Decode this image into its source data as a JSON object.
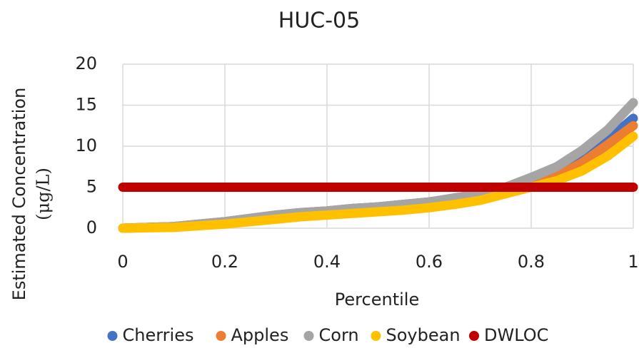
{
  "chart_data": {
    "type": "scatter",
    "title": "HUC-05",
    "xlabel": "Percentile",
    "ylabel": [
      "Estimated Concentration",
      "(μg/L)"
    ],
    "x": [
      0,
      0.05,
      0.1,
      0.15,
      0.2,
      0.25,
      0.3,
      0.35,
      0.4,
      0.45,
      0.5,
      0.55,
      0.6,
      0.65,
      0.7,
      0.75,
      0.8,
      0.85,
      0.9,
      0.95,
      1
    ],
    "series": [
      {
        "name": "Cherries",
        "color": "#4472c4",
        "values": [
          0,
          0.1,
          0.2,
          0.5,
          0.8,
          1.2,
          1.6,
          1.9,
          2.1,
          2.4,
          2.6,
          2.9,
          3.2,
          3.6,
          4.1,
          4.8,
          5.6,
          6.8,
          8.5,
          10.8,
          13.4
        ]
      },
      {
        "name": "Apples",
        "color": "#ed7d31",
        "values": [
          0,
          0.1,
          0.2,
          0.5,
          0.8,
          1.2,
          1.6,
          1.9,
          2.1,
          2.4,
          2.6,
          2.9,
          3.2,
          3.6,
          4.0,
          4.6,
          5.2,
          6.3,
          8.0,
          10.2,
          12.5
        ]
      },
      {
        "name": "Corn",
        "color": "#a5a5a5",
        "values": [
          0,
          0.1,
          0.2,
          0.5,
          0.8,
          1.2,
          1.6,
          1.9,
          2.1,
          2.4,
          2.6,
          2.9,
          3.2,
          3.7,
          4.2,
          5.0,
          6.2,
          7.5,
          9.5,
          12,
          15.3
        ]
      },
      {
        "name": "Soybean",
        "color": "#ffc000",
        "values": [
          0,
          0.05,
          0.1,
          0.3,
          0.5,
          0.8,
          1.1,
          1.4,
          1.6,
          1.8,
          2.0,
          2.2,
          2.5,
          2.9,
          3.4,
          4.2,
          5.0,
          5.8,
          7.0,
          8.8,
          11.2
        ]
      },
      {
        "name": "DWLOC",
        "color": "#c00000",
        "values": [
          5,
          5,
          5,
          5,
          5,
          5,
          5,
          5,
          5,
          5,
          5,
          5,
          5,
          5,
          5,
          5,
          5,
          5,
          5,
          5,
          5
        ]
      }
    ],
    "xlim": [
      0,
      1
    ],
    "xticks": [
      0,
      0.2,
      0.4,
      0.6,
      0.8,
      1
    ],
    "ylim": [
      0,
      20
    ],
    "yticks": [
      0,
      5,
      10,
      15,
      20
    ],
    "grid": true,
    "legend": "bottom"
  }
}
